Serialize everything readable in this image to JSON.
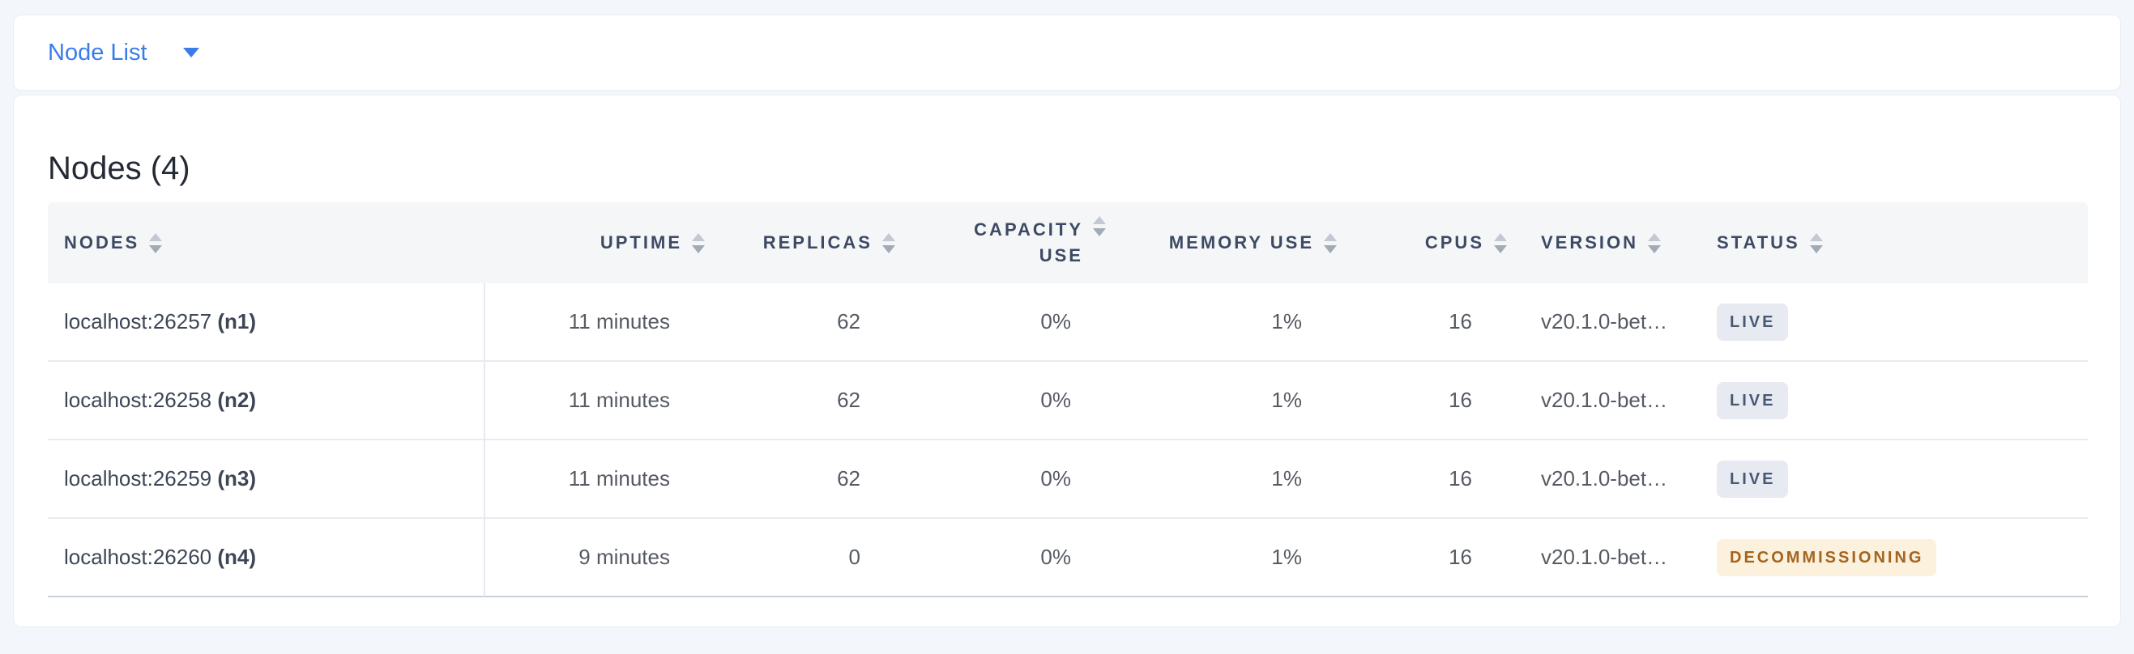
{
  "view_selector": {
    "label": "Node List"
  },
  "summary": {
    "title": "Nodes (4)"
  },
  "table": {
    "columns": [
      {
        "key": "nodes",
        "label": "NODES"
      },
      {
        "key": "uptime",
        "label": "UPTIME"
      },
      {
        "key": "replicas",
        "label": "REPLICAS"
      },
      {
        "key": "capacity",
        "label": "CAPACITY USE"
      },
      {
        "key": "memory",
        "label": "MEMORY USE"
      },
      {
        "key": "cpus",
        "label": "CPUS"
      },
      {
        "key": "version",
        "label": "VERSION"
      },
      {
        "key": "status",
        "label": "STATUS"
      }
    ],
    "rows": [
      {
        "address": "localhost:26257",
        "node_id": "(n1)",
        "uptime": "11 minutes",
        "replicas": "62",
        "capacity": "0%",
        "memory": "1%",
        "cpus": "16",
        "version": "v20.1.0-bet…",
        "status": "LIVE",
        "status_type": "live"
      },
      {
        "address": "localhost:26258",
        "node_id": "(n2)",
        "uptime": "11 minutes",
        "replicas": "62",
        "capacity": "0%",
        "memory": "1%",
        "cpus": "16",
        "version": "v20.1.0-bet…",
        "status": "LIVE",
        "status_type": "live"
      },
      {
        "address": "localhost:26259",
        "node_id": "(n3)",
        "uptime": "11 minutes",
        "replicas": "62",
        "capacity": "0%",
        "memory": "1%",
        "cpus": "16",
        "version": "v20.1.0-bet…",
        "status": "LIVE",
        "status_type": "live"
      },
      {
        "address": "localhost:26260",
        "node_id": "(n4)",
        "uptime": "9 minutes",
        "replicas": "0",
        "capacity": "0%",
        "memory": "1%",
        "cpus": "16",
        "version": "v20.1.0-bet…",
        "status": "DECOMMISSIONING",
        "status_type": "decommissioning"
      }
    ]
  },
  "colors": {
    "accent_blue": "#3b7ce8",
    "live_badge_bg": "#e7eaf1",
    "live_badge_text": "#475872",
    "decommissioning_badge_bg": "#fbf1dc",
    "decommissioning_badge_text": "#a4641f"
  }
}
